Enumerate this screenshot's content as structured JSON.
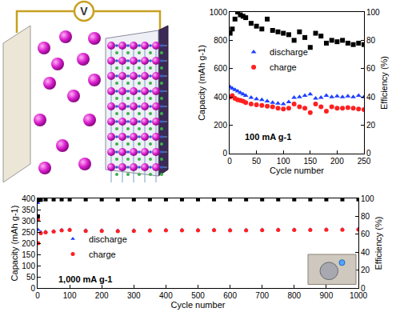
{
  "diagram": {
    "meter_label": "V"
  },
  "chart_data": [
    {
      "type": "scatter",
      "annotations": [
        "100 mA g-1"
      ],
      "x_label": "Cycle number",
      "y_label": "Capacity (mAh g-1)",
      "y2_label": "Efficiency (%)",
      "x": [
        1,
        5,
        10,
        15,
        20,
        25,
        30,
        40,
        50,
        60,
        70,
        80,
        90,
        100,
        110,
        120,
        130,
        140,
        150,
        160,
        170,
        180,
        190,
        200,
        210,
        220,
        230,
        240,
        250
      ],
      "series": [
        {
          "name": "discharge",
          "color": "#1f3fff",
          "marker": "triangle-up",
          "values": [
            470,
            460,
            450,
            440,
            430,
            420,
            410,
            395,
            385,
            380,
            370,
            360,
            355,
            350,
            365,
            395,
            400,
            410,
            420,
            390,
            395,
            410,
            400,
            405,
            400,
            405,
            400,
            410,
            400
          ]
        },
        {
          "name": "charge",
          "color": "#ff2020",
          "marker": "circle",
          "values": [
            400,
            410,
            390,
            380,
            375,
            370,
            360,
            350,
            345,
            340,
            335,
            330,
            320,
            315,
            320,
            350,
            330,
            320,
            290,
            350,
            330,
            300,
            330,
            320,
            320,
            325,
            320,
            315,
            310
          ]
        },
        {
          "color": "#000000",
          "marker": "square",
          "axis": "y2",
          "values": [
            85,
            88,
            95,
            100,
            98,
            97,
            96,
            92,
            90,
            88,
            95,
            87,
            86,
            85,
            84,
            80,
            86,
            82,
            75,
            85,
            83,
            78,
            80,
            79,
            80,
            78,
            77,
            78,
            77
          ]
        }
      ],
      "xlim": [
        0,
        250
      ],
      "xticks": [
        0,
        50,
        100,
        150,
        200,
        250
      ],
      "ylim": [
        0,
        1000
      ],
      "yticks": [
        0,
        200,
        400,
        600,
        800,
        1000
      ],
      "y2lim": [
        0,
        100
      ],
      "y2ticks": [
        0,
        20,
        40,
        60,
        80,
        100
      ],
      "grid": false,
      "legend": "upper left"
    },
    {
      "type": "scatter",
      "annotations": [
        "1,000 mA g-1"
      ],
      "x_label": "Cycle number",
      "y_label": "Capacity (mAh g-1)",
      "y2_label": "Efficiency (%)",
      "x": [
        1,
        2,
        10,
        25,
        50,
        75,
        100,
        150,
        200,
        250,
        300,
        350,
        400,
        450,
        500,
        550,
        600,
        650,
        700,
        750,
        800,
        850,
        900,
        950,
        1000
      ],
      "series": [
        {
          "name": "discharge",
          "color": "#1f3fff",
          "marker": "triangle-up",
          "values": [
            380,
            260,
            250,
            252,
            255,
            260,
            262,
            258,
            258,
            257,
            258,
            259,
            260,
            260,
            260,
            261,
            260,
            260,
            261,
            262,
            262,
            262,
            263,
            263,
            264
          ]
        },
        {
          "name": "charge",
          "color": "#ff2020",
          "marker": "circle",
          "values": [
            305,
            200,
            245,
            248,
            252,
            257,
            259,
            255,
            255,
            254,
            255,
            256,
            257,
            257,
            257,
            258,
            257,
            257,
            258,
            259,
            259,
            259,
            260,
            260,
            261
          ]
        },
        {
          "color": "#000000",
          "marker": "square",
          "axis": "y2",
          "values": [
            80,
            98,
            98.5,
            99,
            99,
            99,
            99,
            99,
            99,
            99,
            99,
            99,
            99,
            99,
            99,
            99,
            99,
            99,
            99,
            99,
            99,
            99,
            99,
            99,
            99
          ]
        }
      ],
      "xlim": [
        0,
        1000
      ],
      "xticks": [
        0,
        100,
        200,
        300,
        400,
        500,
        600,
        700,
        800,
        900,
        1000
      ],
      "ylim": [
        0,
        400
      ],
      "yticks": [
        0,
        50,
        100,
        150,
        200,
        250,
        300,
        350,
        400
      ],
      "y2lim": [
        0,
        100
      ],
      "y2ticks": [
        0,
        20,
        40,
        60,
        80,
        100
      ],
      "grid": false,
      "legend": "lower left"
    }
  ]
}
